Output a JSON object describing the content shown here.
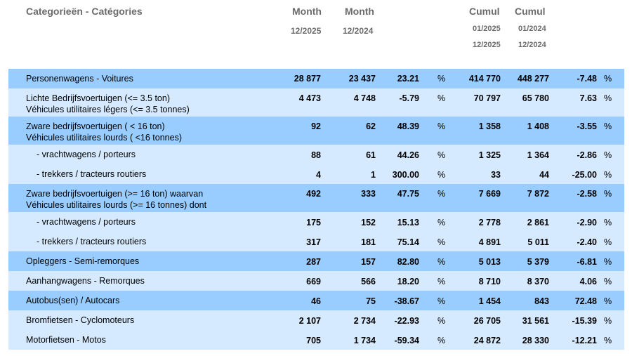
{
  "header": {
    "category": "Categorieën - Catégories",
    "month_a": "Month",
    "month_a_period": "12/2025",
    "month_b": "Month",
    "month_b_period": "12/2024",
    "cumul_a": "Cumul",
    "cumul_a_from": "01/2025",
    "cumul_a_to": "12/2025",
    "cumul_b": "Cumul",
    "cumul_b_from": "01/2024",
    "cumul_b_to": "12/2024"
  },
  "percent_sign": "%",
  "rows": [
    {
      "label": [
        "Personenwagens - Voitures"
      ],
      "m1": "28 877",
      "m2": "23 437",
      "p1": "23.21",
      "c1": "414 770",
      "c2": "448 277",
      "p2": "-7.48"
    },
    {
      "label": [
        "Lichte Bedrijfsvoertuigen (<= 3.5 ton)",
        "Véhicules utilitaires légers (<= 3.5 tonnes)"
      ],
      "m1": "4 473",
      "m2": "4 748",
      "p1": "-5.79",
      "c1": "70 797",
      "c2": "65 780",
      "p2": "7.63"
    },
    {
      "label": [
        "Zware bedrijfsvoertuigen ( < 16 ton)",
        "Véhicules utilitaires lourds ( <16 tonnes)"
      ],
      "m1": "92",
      "m2": "62",
      "p1": "48.39",
      "c1": "1 358",
      "c2": "1 408",
      "p2": "-3.55"
    },
    {
      "label": [
        "- vrachtwagens / porteurs"
      ],
      "m1": "88",
      "m2": "61",
      "p1": "44.26",
      "c1": "1 325",
      "c2": "1 364",
      "p2": "-2.86"
    },
    {
      "label": [
        "- trekkers / tracteurs routiers"
      ],
      "m1": "4",
      "m2": "1",
      "p1": "300.00",
      "c1": "33",
      "c2": "44",
      "p2": "-25.00"
    },
    {
      "label": [
        "Zware bedrijfsvoertuigen (>= 16 ton) waarvan",
        "Véhicules utilitaires lourds (>= 16 tonnes) dont"
      ],
      "m1": "492",
      "m2": "333",
      "p1": "47.75",
      "c1": "7 669",
      "c2": "7 872",
      "p2": "-2.58"
    },
    {
      "label": [
        "- vrachtwagens / porteurs"
      ],
      "m1": "175",
      "m2": "152",
      "p1": "15.13",
      "c1": "2 778",
      "c2": "2 861",
      "p2": "-2.90"
    },
    {
      "label": [
        "- trekkers / tracteurs routiers"
      ],
      "m1": "317",
      "m2": "181",
      "p1": "75.14",
      "c1": "4 891",
      "c2": "5 011",
      "p2": "-2.40"
    },
    {
      "label": [
        "Opleggers - Semi-remorques"
      ],
      "m1": "287",
      "m2": "157",
      "p1": "82.80",
      "c1": "5 013",
      "c2": "5 379",
      "p2": "-6.81"
    },
    {
      "label": [
        "Aanhangwagens - Remorques"
      ],
      "m1": "669",
      "m2": "566",
      "p1": "18.20",
      "c1": "8 710",
      "c2": "8 370",
      "p2": "4.06"
    },
    {
      "label": [
        "Autobus(sen) / Autocars"
      ],
      "m1": "46",
      "m2": "75",
      "p1": "-38.67",
      "c1": "1 454",
      "c2": "843",
      "p2": "72.48"
    },
    {
      "label": [
        "Bromfietsen - Cyclomoteurs"
      ],
      "m1": "2 107",
      "m2": "2 734",
      "p1": "-22.93",
      "c1": "26 705",
      "c2": "31 561",
      "p2": "-15.39"
    },
    {
      "label": [
        "Motorfietsen - Motos"
      ],
      "m1": "705",
      "m2": "1 734",
      "p1": "-59.34",
      "c1": "24 872",
      "c2": "28 330",
      "p2": "-12.21"
    }
  ]
}
